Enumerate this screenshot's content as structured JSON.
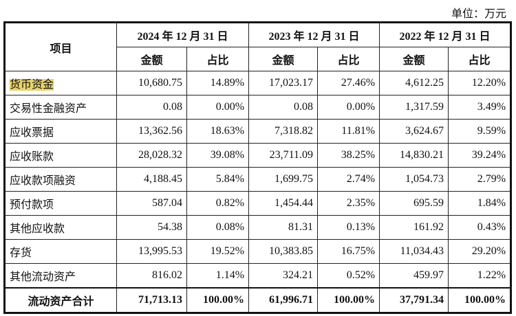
{
  "unit": "单位：万元",
  "header": {
    "item": "项目",
    "periods": [
      "2024 年 12 月 31 日",
      "2023 年 12 月 31 日",
      "2022 年 12 月 31 日"
    ],
    "amount": "金额",
    "ratio": "占比"
  },
  "highlight_color": "#e8d36a",
  "rows": [
    {
      "label": "货币资金",
      "values": [
        "10,680.75",
        "14.89%",
        "17,023.17",
        "27.46%",
        "4,612.25",
        "12.20%"
      ]
    },
    {
      "label": "交易性金融资产",
      "values": [
        "0.08",
        "0.00%",
        "0.08",
        "0.00%",
        "1,317.59",
        "3.49%"
      ]
    },
    {
      "label": "应收票据",
      "values": [
        "13,362.56",
        "18.63%",
        "7,318.82",
        "11.81%",
        "3,624.67",
        "9.59%"
      ]
    },
    {
      "label": "应收账款",
      "values": [
        "28,028.32",
        "39.08%",
        "23,711.09",
        "38.25%",
        "14,830.21",
        "39.24%"
      ]
    },
    {
      "label": "应收款项融资",
      "values": [
        "4,188.45",
        "5.84%",
        "1,699.75",
        "2.74%",
        "1,054.73",
        "2.79%"
      ]
    },
    {
      "label": "预付款项",
      "values": [
        "587.04",
        "0.82%",
        "1,454.44",
        "2.35%",
        "695.59",
        "1.84%"
      ]
    },
    {
      "label": "其他应收款",
      "values": [
        "54.38",
        "0.08%",
        "81.31",
        "0.13%",
        "161.92",
        "0.43%"
      ]
    },
    {
      "label": "存货",
      "values": [
        "13,995.53",
        "19.52%",
        "10,383.85",
        "16.75%",
        "11,034.43",
        "29.20%"
      ]
    },
    {
      "label": "其他流动资产",
      "values": [
        "816.02",
        "1.14%",
        "324.21",
        "0.52%",
        "459.97",
        "1.22%"
      ]
    }
  ],
  "total": {
    "label": "流动资产合计",
    "values": [
      "71,713.13",
      "100.00%",
      "61,996.71",
      "100.00%",
      "37,791.34",
      "100.00%"
    ]
  }
}
